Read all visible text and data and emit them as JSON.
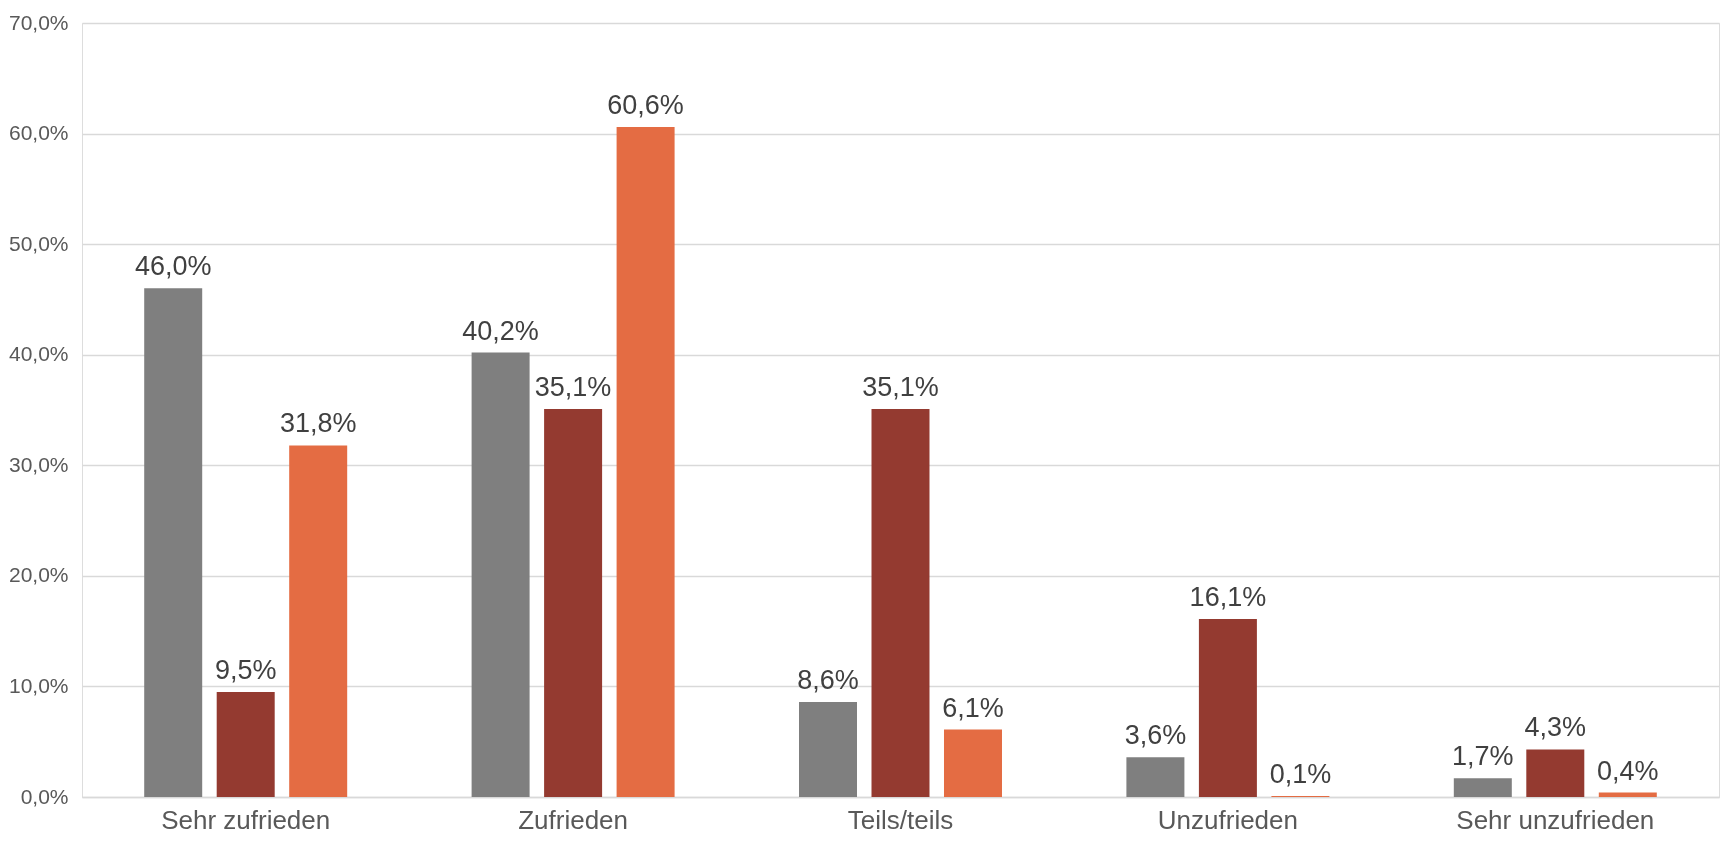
{
  "chart_data": {
    "type": "bar",
    "categories": [
      "Sehr zufrieden",
      "Zufrieden",
      "Teils/teils",
      "Unzufrieden",
      "Sehr unzufrieden"
    ],
    "series": [
      {
        "color": "#7f7f7f",
        "values": [
          46.0,
          40.2,
          8.6,
          3.6,
          1.7
        ],
        "value_labels": [
          "46,0%",
          "40,2%",
          "8,6%",
          "3,6%",
          "1,7%"
        ]
      },
      {
        "color": "#943a30",
        "values": [
          9.5,
          35.1,
          35.1,
          16.1,
          4.3
        ],
        "value_labels": [
          "9,5%",
          "35,1%",
          "35,1%",
          "16,1%",
          "4,3%"
        ]
      },
      {
        "color": "#e46c43",
        "values": [
          31.8,
          60.6,
          6.1,
          0.1,
          0.4
        ],
        "value_labels": [
          "31,8%",
          "60,6%",
          "6,1%",
          "0,1%",
          "0,4%"
        ]
      }
    ],
    "ylim": [
      0,
      70
    ],
    "yticks": [
      {
        "value": 0,
        "label": "0,0%"
      },
      {
        "value": 10,
        "label": "10,0%"
      },
      {
        "value": 20,
        "label": "20,0%"
      },
      {
        "value": 30,
        "label": "30,0%"
      },
      {
        "value": 40,
        "label": "40,0%"
      },
      {
        "value": 50,
        "label": "50,0%"
      },
      {
        "value": 60,
        "label": "60,0%"
      },
      {
        "value": 70,
        "label": "70,0%"
      }
    ],
    "grid": "y"
  }
}
